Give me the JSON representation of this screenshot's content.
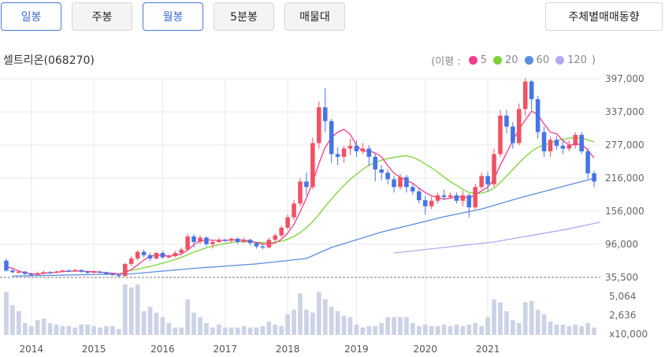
{
  "tabs": [
    {
      "label": "일봉",
      "active": true
    },
    {
      "label": "주봉",
      "active": false
    },
    {
      "label": "월봉",
      "active": true
    },
    {
      "label": "5분봉",
      "active": false
    },
    {
      "label": "매물대",
      "active": false
    }
  ],
  "investor_button": "주체별매매동향",
  "stock": {
    "name_code": "셀트리온(068270)"
  },
  "legend": {
    "prefix": "(이평 :",
    "suffix": ")",
    "items": [
      {
        "label": "5",
        "color": "#f23c8c"
      },
      {
        "label": "20",
        "color": "#7bd336"
      },
      {
        "label": "60",
        "color": "#5b8de0"
      },
      {
        "label": "120",
        "color": "#b6a8ef"
      }
    ]
  },
  "colors": {
    "up": "#f05265",
    "down": "#4574e6",
    "volume": "#ccd3e6",
    "grid": "#e9e9e9"
  },
  "chart_data": {
    "type": "candlestick",
    "price_axis_labels": [
      "397,000",
      "337,000",
      "277,000",
      "216,000",
      "156,000",
      "96,000",
      "35,500"
    ],
    "price_ylim": [
      35500,
      397000
    ],
    "volume_axis_labels": [
      "5,064",
      "2,636",
      "x10,000"
    ],
    "x_labels": [
      "2014",
      "2015",
      "2016",
      "2017",
      "2018",
      "2019",
      "2020",
      "2021"
    ],
    "candles": [
      [
        66000,
        48000,
        70000,
        46000
      ],
      [
        48000,
        45000,
        51000,
        43000
      ],
      [
        45000,
        46000,
        48000,
        43000
      ],
      [
        46000,
        42000,
        47000,
        40000
      ],
      [
        42000,
        40000,
        44000,
        38000
      ],
      [
        40000,
        43000,
        46000,
        39000
      ],
      [
        43000,
        45000,
        48000,
        42000
      ],
      [
        45000,
        44000,
        47000,
        42000
      ],
      [
        44000,
        46000,
        48000,
        43000
      ],
      [
        46000,
        48000,
        50000,
        45000
      ],
      [
        48000,
        47000,
        50000,
        45000
      ],
      [
        47000,
        49000,
        51000,
        46000
      ],
      [
        49000,
        46000,
        50000,
        44000
      ],
      [
        46000,
        44000,
        48000,
        42000
      ],
      [
        44000,
        46000,
        48000,
        43000
      ],
      [
        46000,
        45000,
        48000,
        43000
      ],
      [
        45000,
        42000,
        46000,
        40000
      ],
      [
        42000,
        40000,
        43000,
        38000
      ],
      [
        40000,
        38000,
        42000,
        36000
      ],
      [
        38000,
        60000,
        62000,
        37000
      ],
      [
        60000,
        70000,
        74000,
        56000
      ],
      [
        70000,
        82000,
        85000,
        66000
      ],
      [
        82000,
        76000,
        86000,
        72000
      ],
      [
        76000,
        70000,
        80000,
        66000
      ],
      [
        70000,
        80000,
        82000,
        68000
      ],
      [
        80000,
        72000,
        84000,
        70000
      ],
      [
        72000,
        74000,
        78000,
        70000
      ],
      [
        74000,
        80000,
        84000,
        72000
      ],
      [
        80000,
        86000,
        90000,
        76000
      ],
      [
        86000,
        110000,
        115000,
        84000
      ],
      [
        110000,
        100000,
        114000,
        90000
      ],
      [
        100000,
        108000,
        112000,
        96000
      ],
      [
        108000,
        96000,
        110000,
        92000
      ],
      [
        96000,
        100000,
        104000,
        88000
      ],
      [
        100000,
        104000,
        108000,
        98000
      ],
      [
        104000,
        103000,
        106000,
        100000
      ],
      [
        103000,
        106000,
        108000,
        100000
      ],
      [
        106000,
        100000,
        108000,
        96000
      ],
      [
        100000,
        104000,
        108000,
        98000
      ],
      [
        104000,
        98000,
        106000,
        94000
      ],
      [
        98000,
        92000,
        100000,
        88000
      ],
      [
        92000,
        90000,
        96000,
        86000
      ],
      [
        90000,
        104000,
        108000,
        88000
      ],
      [
        104000,
        112000,
        116000,
        100000
      ],
      [
        112000,
        126000,
        130000,
        108000
      ],
      [
        126000,
        145000,
        150000,
        122000
      ],
      [
        145000,
        170000,
        176000,
        140000
      ],
      [
        170000,
        210000,
        216000,
        165000
      ],
      [
        210000,
        200000,
        226000,
        185000
      ],
      [
        200000,
        280000,
        290000,
        196000
      ],
      [
        280000,
        345000,
        356000,
        270000
      ],
      [
        345000,
        320000,
        380000,
        300000
      ],
      [
        320000,
        260000,
        324000,
        244000
      ],
      [
        260000,
        255000,
        272000,
        240000
      ],
      [
        255000,
        270000,
        275000,
        244000
      ],
      [
        270000,
        275000,
        288000,
        258000
      ],
      [
        275000,
        265000,
        285000,
        255000
      ],
      [
        265000,
        270000,
        280000,
        260000
      ],
      [
        270000,
        255000,
        276000,
        238000
      ],
      [
        255000,
        232000,
        262000,
        210000
      ],
      [
        232000,
        226000,
        240000,
        212000
      ],
      [
        226000,
        214000,
        232000,
        205000
      ],
      [
        214000,
        200000,
        220000,
        190000
      ],
      [
        200000,
        218000,
        224000,
        195000
      ],
      [
        218000,
        200000,
        222000,
        190000
      ],
      [
        200000,
        192000,
        206000,
        186000
      ],
      [
        192000,
        176000,
        198000,
        170000
      ],
      [
        176000,
        165000,
        184000,
        150000
      ],
      [
        165000,
        175000,
        182000,
        160000
      ],
      [
        175000,
        185000,
        190000,
        170000
      ],
      [
        185000,
        182000,
        195000,
        176000
      ],
      [
        182000,
        185000,
        190000,
        178000
      ],
      [
        185000,
        175000,
        190000,
        170000
      ],
      [
        175000,
        185000,
        194000,
        165000
      ],
      [
        185000,
        163000,
        188000,
        145000
      ],
      [
        163000,
        200000,
        206000,
        160000
      ],
      [
        200000,
        220000,
        226000,
        196000
      ],
      [
        220000,
        205000,
        228000,
        192000
      ],
      [
        205000,
        260000,
        270000,
        200000
      ],
      [
        260000,
        330000,
        340000,
        255000
      ],
      [
        330000,
        310000,
        340000,
        298000
      ],
      [
        310000,
        280000,
        318000,
        270000
      ],
      [
        280000,
        342000,
        352000,
        276000
      ],
      [
        342000,
        392000,
        398000,
        330000
      ],
      [
        392000,
        360000,
        395000,
        340000
      ],
      [
        360000,
        300000,
        366000,
        288000
      ],
      [
        300000,
        265000,
        310000,
        255000
      ],
      [
        265000,
        286000,
        292000,
        255000
      ],
      [
        286000,
        275000,
        292000,
        268000
      ],
      [
        275000,
        270000,
        285000,
        260000
      ],
      [
        270000,
        276000,
        285000,
        265000
      ],
      [
        276000,
        295000,
        300000,
        270000
      ],
      [
        295000,
        265000,
        300000,
        260000
      ],
      [
        265000,
        225000,
        270000,
        215000
      ],
      [
        225000,
        210000,
        230000,
        200000
      ]
    ],
    "ma5": [
      55000,
      52000,
      47000,
      44000,
      42000,
      42000,
      43000,
      44000,
      45000,
      46000,
      47000,
      47000,
      47000,
      46000,
      46000,
      45000,
      44000,
      43000,
      42000,
      44000,
      50000,
      58000,
      67000,
      74000,
      76000,
      76000,
      74000,
      76000,
      78000,
      85000,
      95000,
      102000,
      104000,
      103000,
      103000,
      103000,
      103000,
      104000,
      103000,
      102000,
      99000,
      96000,
      96000,
      98000,
      105000,
      116000,
      132000,
      155000,
      180000,
      208000,
      243000,
      272000,
      290000,
      300000,
      305000,
      296000,
      276000,
      265000,
      266000,
      262000,
      255000,
      239000,
      225000,
      218000,
      212000,
      207000,
      198000,
      190000,
      184000,
      181000,
      178000,
      180000,
      182000,
      182000,
      180000,
      186000,
      193000,
      200000,
      214000,
      240000,
      262000,
      285000,
      305000,
      322000,
      338000,
      332000,
      315000,
      300000,
      297000,
      285000,
      276000,
      278000,
      278000,
      267000,
      253000
    ],
    "ma20": [
      null,
      null,
      null,
      null,
      null,
      null,
      null,
      null,
      null,
      null,
      null,
      null,
      null,
      null,
      null,
      null,
      null,
      null,
      null,
      47000,
      48500,
      50500,
      53000,
      55500,
      58500,
      61500,
      64500,
      68000,
      72000,
      77000,
      81500,
      85500,
      89500,
      92500,
      95000,
      97000,
      99000,
      100500,
      100500,
      100000,
      99500,
      99000,
      98500,
      99500,
      101500,
      105000,
      110000,
      117000,
      126000,
      137000,
      150000,
      165000,
      178000,
      191000,
      203000,
      214000,
      223000,
      232000,
      240000,
      245000,
      249000,
      252000,
      254000,
      256000,
      257000,
      254000,
      249000,
      242000,
      235000,
      227000,
      218000,
      210000,
      203000,
      196000,
      190000,
      188000,
      189000,
      192000,
      198000,
      208000,
      220000,
      232000,
      244000,
      255000,
      265000,
      272000,
      277000,
      280000,
      284000,
      287000,
      289000,
      290000,
      289000,
      286000,
      282000
    ],
    "ma60": [
      null,
      null,
      null,
      null,
      null,
      null,
      null,
      null,
      null,
      null,
      null,
      null,
      null,
      null,
      null,
      null,
      null,
      null,
      null,
      null,
      null,
      null,
      null,
      null,
      null,
      null,
      null,
      null,
      null,
      null,
      null,
      null,
      null,
      null,
      null,
      null,
      null,
      null,
      null,
      null,
      null,
      null,
      null,
      null,
      null,
      null,
      null,
      null,
      null,
      null,
      null,
      null,
      null,
      null,
      null,
      null,
      null,
      null,
      null,
      null,
      null,
      null,
      null,
      null,
      null,
      null,
      null,
      null,
      null,
      null,
      null,
      null,
      null,
      null,
      null,
      null,
      null,
      null,
      null,
      null,
      null,
      null,
      null,
      null,
      null,
      null,
      null,
      null,
      null,
      null,
      null,
      null,
      null,
      null,
      null
    ],
    "ma60_line": [
      [
        1,
        38000
      ],
      [
        20,
        42000
      ],
      [
        30,
        52000
      ],
      [
        40,
        60000
      ],
      [
        48,
        70000
      ],
      [
        52,
        90000
      ],
      [
        60,
        118000
      ],
      [
        70,
        146000
      ],
      [
        76,
        160000
      ],
      [
        82,
        180000
      ],
      [
        88,
        198000
      ],
      [
        94,
        216000
      ]
    ],
    "ma120_line": [
      [
        62,
        80000
      ],
      [
        70,
        90000
      ],
      [
        78,
        100000
      ],
      [
        84,
        112000
      ],
      [
        90,
        124000
      ],
      [
        95,
        136000
      ]
    ],
    "volume": [
      5.8,
      4.0,
      3.2,
      1.6,
      1.2,
      2.0,
      2.2,
      1.6,
      1.4,
      1.2,
      1.2,
      1.0,
      1.4,
      1.4,
      1.2,
      1.0,
      1.2,
      1.2,
      0.8,
      6.8,
      6.4,
      6.8,
      3.2,
      3.8,
      3.0,
      2.4,
      1.6,
      1.0,
      1.0,
      4.8,
      3.0,
      2.4,
      1.6,
      1.0,
      1.4,
      1.0,
      1.0,
      1.0,
      1.2,
      1.0,
      1.0,
      1.2,
      1.8,
      1.4,
      1.2,
      2.8,
      3.4,
      5.6,
      3.4,
      3.0,
      5.8,
      4.8,
      3.8,
      3.2,
      2.6,
      2.4,
      1.4,
      1.0,
      1.2,
      1.2,
      1.6,
      2.4,
      2.4,
      2.4,
      2.4,
      1.6,
      1.2,
      1.4,
      1.2,
      1.2,
      1.4,
      1.2,
      1.4,
      1.2,
      1.4,
      1.6,
      1.2,
      2.4,
      4.8,
      4.4,
      3.2,
      2.0,
      1.6,
      4.4,
      4.6,
      3.4,
      2.8,
      1.8,
      1.4,
      1.4,
      1.2,
      1.4,
      1.2,
      1.6,
      1.0
    ],
    "volume_ylim": [
      0,
      6.9
    ]
  }
}
